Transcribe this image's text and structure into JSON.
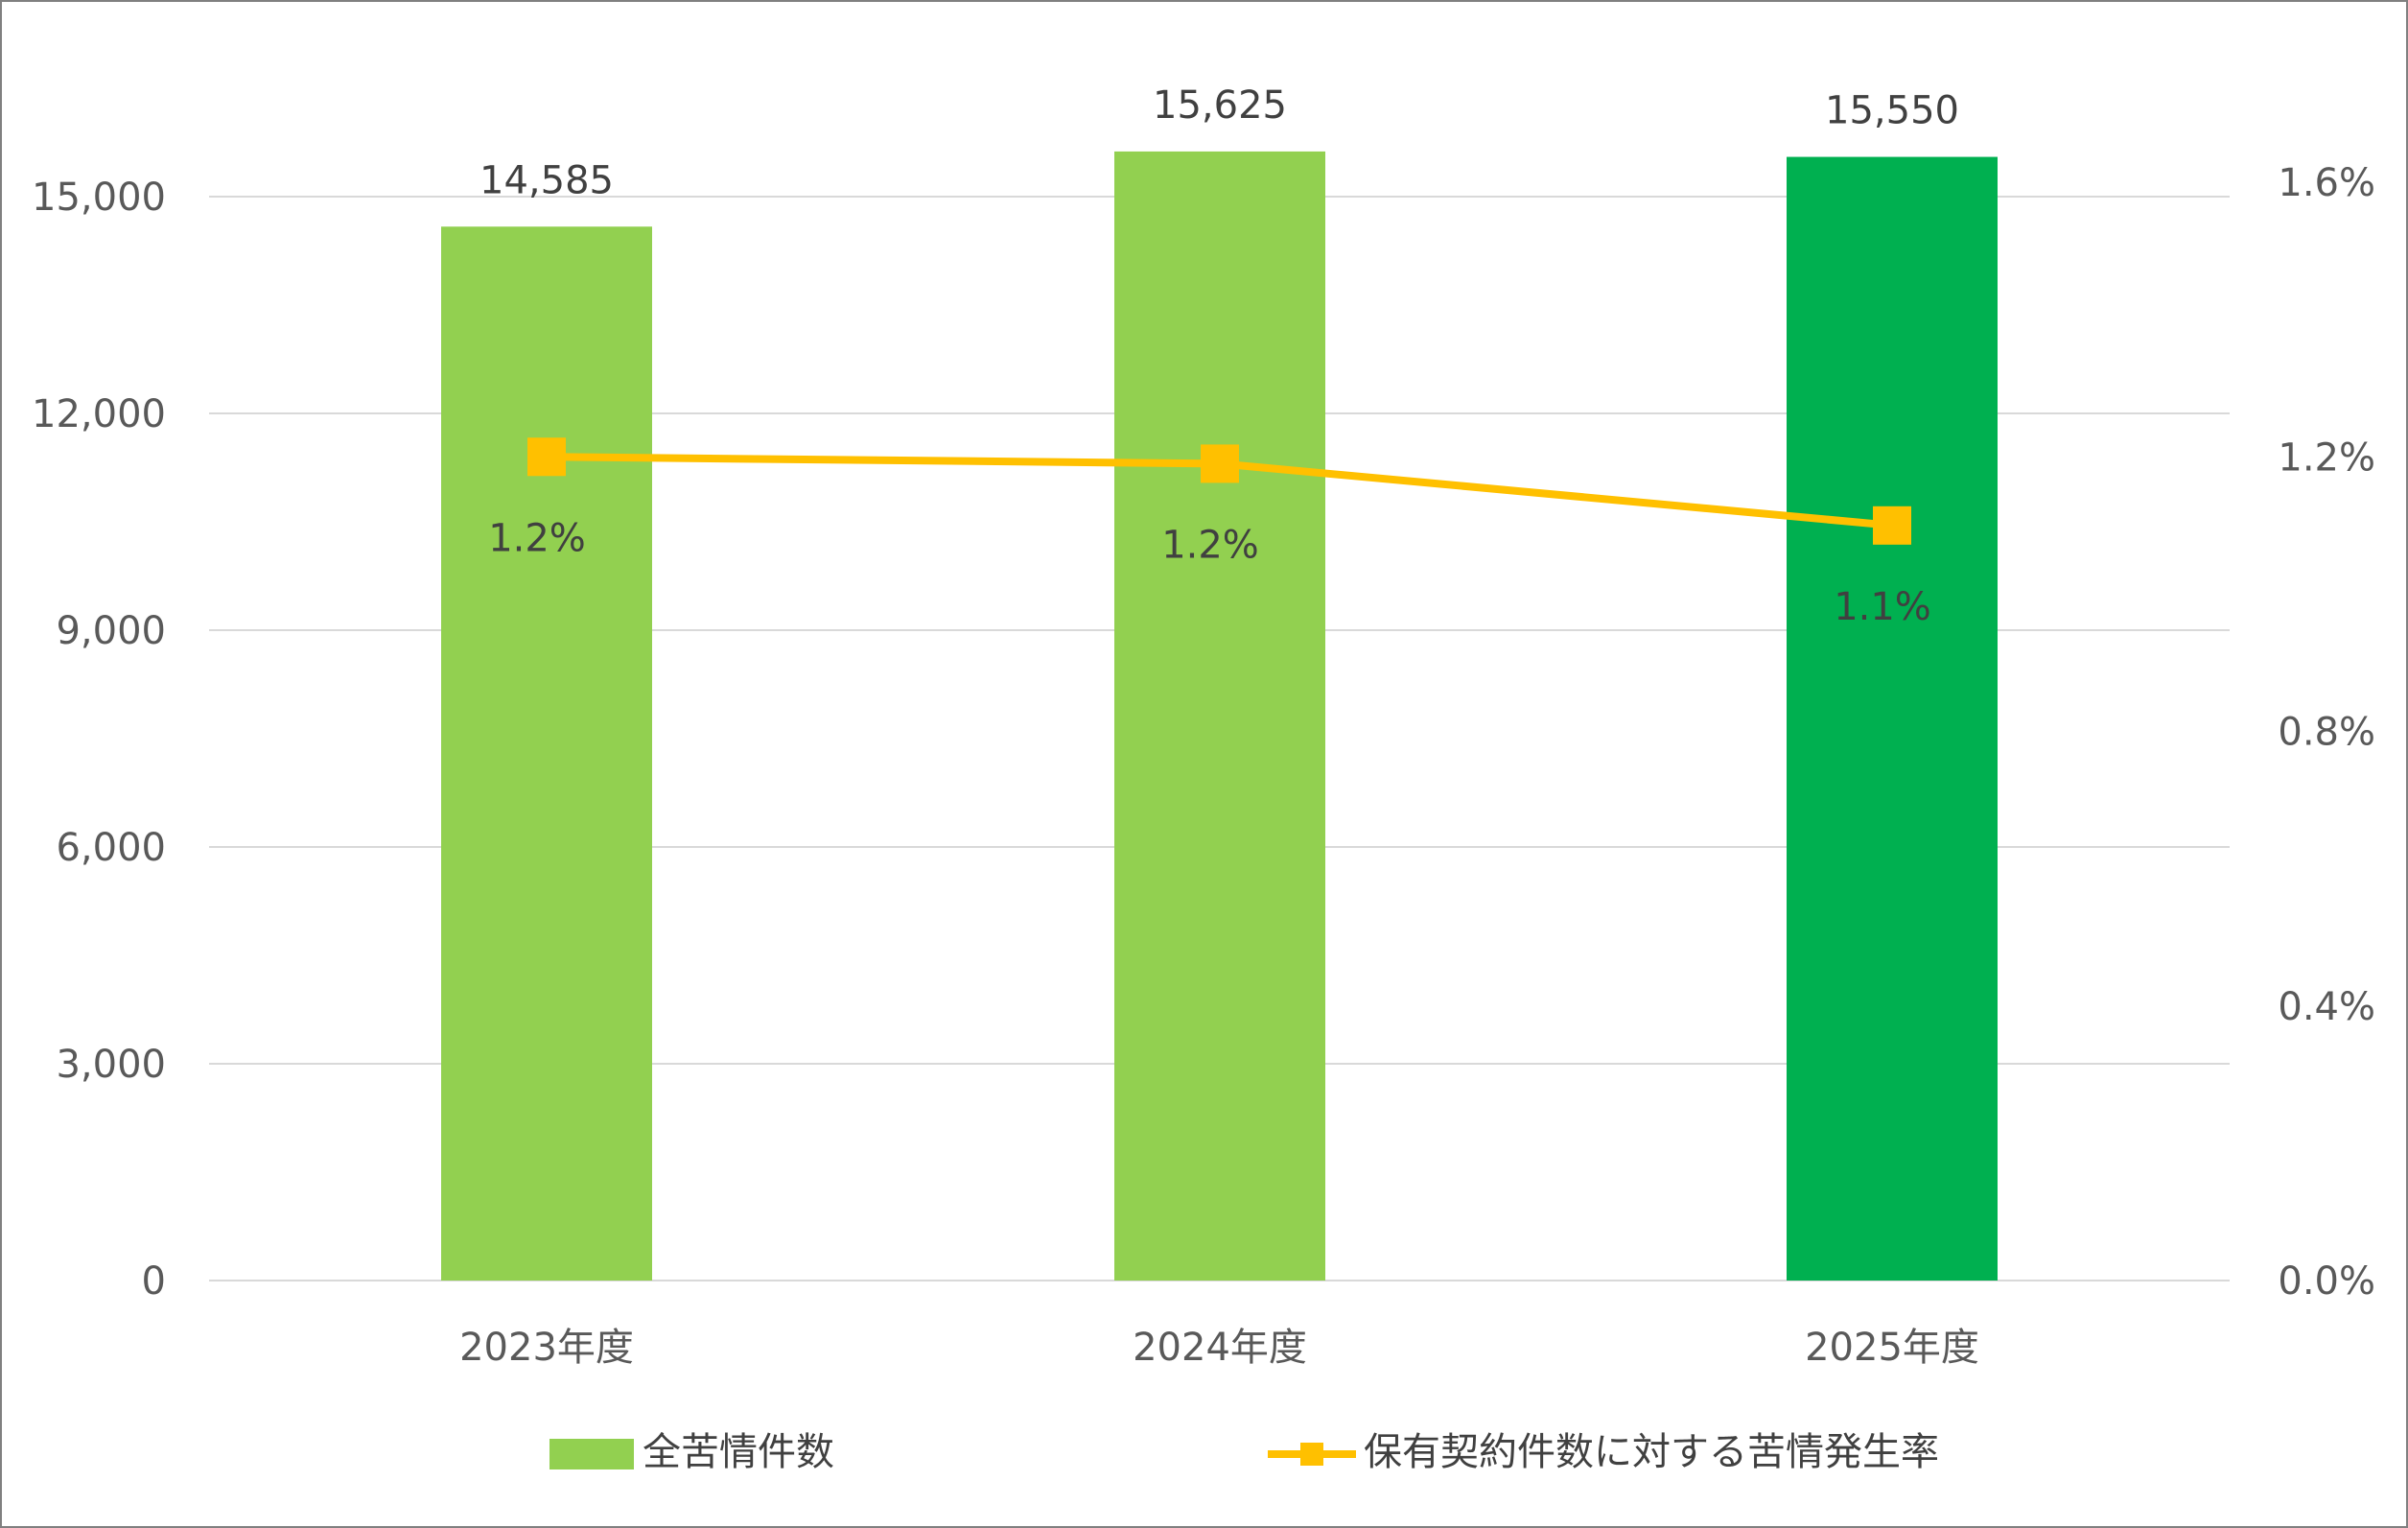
{
  "chart_data": {
    "type": "bar",
    "categories": [
      "2023年度",
      "2024年度",
      "2025年度"
    ],
    "series": [
      {
        "name": "全苦情件数",
        "type": "bar",
        "axis": "left",
        "values": [
          14585,
          15625,
          15550
        ],
        "labels": [
          "14,585",
          "15,625",
          "15,550"
        ],
        "colors": [
          "#92D050",
          "#92D050",
          "#00B050"
        ]
      },
      {
        "name": "保有契約件数に対する苦情発生率",
        "type": "line",
        "axis": "right",
        "values": [
          1.2,
          1.19,
          1.1
        ],
        "labels": [
          "1.2%",
          "1.2%",
          "1.1%"
        ],
        "color": "#FFC000"
      }
    ],
    "y_left": {
      "min": 0,
      "max": 15000,
      "step": 3000,
      "tick_labels": [
        "0",
        "3,000",
        "6,000",
        "9,000",
        "12,000",
        "15,000"
      ]
    },
    "y_right": {
      "min": 0,
      "max": 1.6,
      "step": 0.4,
      "tick_labels": [
        "0.0%",
        "0.4%",
        "0.8%",
        "1.2%",
        "1.6%"
      ]
    },
    "grid": true,
    "legend": "bottom",
    "gridline_color": "#D9D9D9"
  }
}
